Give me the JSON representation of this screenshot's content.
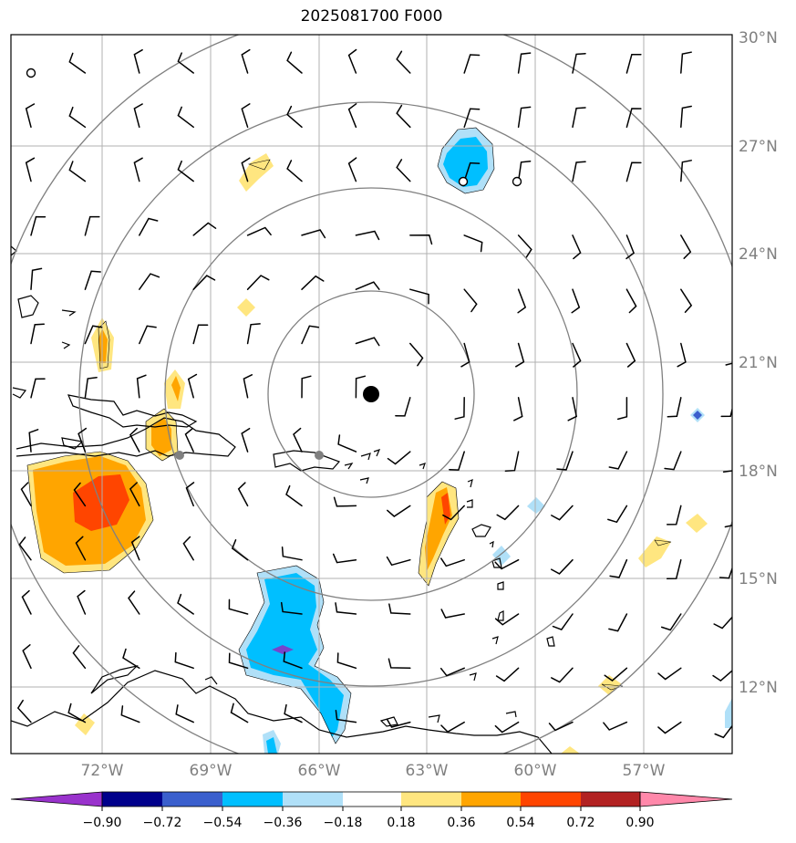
{
  "title": "2025081700 F000",
  "map": {
    "lon_range": [
      -74,
      -54
    ],
    "lat_range": [
      10,
      30
    ],
    "lon_ticks": [
      "72°W",
      "69°W",
      "66°W",
      "63°W",
      "60°W",
      "57°W"
    ],
    "lat_ticks": [
      "12°N",
      "15°N",
      "18°N",
      "21°N",
      "24°N",
      "27°N",
      "30°N"
    ],
    "storm_center": {
      "lon": -64.3,
      "lat": 20.1
    },
    "range_rings": 4
  },
  "colorbar": {
    "labels": [
      "−0.90",
      "−0.72",
      "−0.54",
      "−0.36",
      "−0.18",
      "0.18",
      "0.36",
      "0.54",
      "0.72",
      "0.90"
    ],
    "colors": [
      "#9932cc",
      "#00008b",
      "#3a5fcd",
      "#00bfff",
      "#b0e0f8",
      "#ffffff",
      "#ffe680",
      "#ffa500",
      "#ff4500",
      "#b22222",
      "#ff88aa"
    ]
  }
}
